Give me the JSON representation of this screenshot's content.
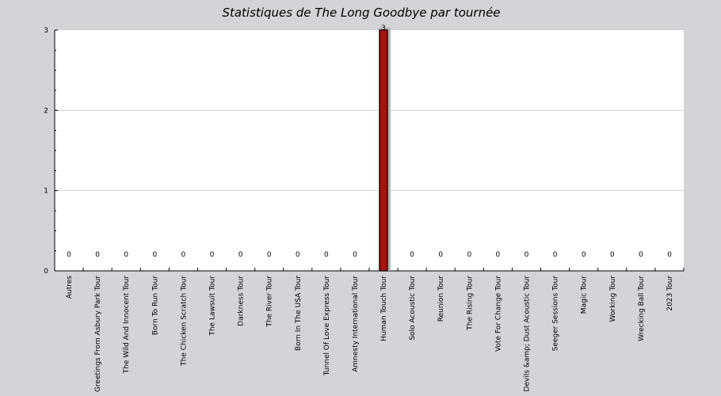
{
  "chart_data": {
    "type": "bar",
    "title": "Statistiques de The Long Goodbye par tournée",
    "xlabel": "",
    "ylabel": "",
    "ylim": [
      0,
      3
    ],
    "yticks": [
      0,
      1,
      2,
      3
    ],
    "grid": true,
    "bar_color": "#aa1111",
    "categories": [
      "Autres",
      "Greetings From Asbury Park Tour",
      "The Wild And Innocent Tour",
      "Born To Run Tour",
      "The Chicken Scratch Tour",
      "The Lawsuit Tour",
      "Darkness Tour",
      "The River Tour",
      "Born In The USA Tour",
      "Tunnel Of Love Express Tour",
      "Amnesty International Tour",
      "Human Touch Tour",
      "Solo Acoustic Tour",
      "Reunion Tour",
      "The Rising Tour",
      "Vote For Change Tour",
      "Devils &amp; Dust Acoustic Tour",
      "Seeger Sessions Tour",
      "Magic Tour",
      "Working Tour",
      "Wrecking Ball Tour",
      "2023 Tour"
    ],
    "values": [
      0,
      0,
      0,
      0,
      0,
      0,
      0,
      0,
      0,
      0,
      0,
      3,
      0,
      0,
      0,
      0,
      0,
      0,
      0,
      0,
      0,
      0
    ],
    "value_labels": [
      "0",
      "0",
      "0",
      "0",
      "0",
      "0",
      "0",
      "0",
      "0",
      "0",
      "0",
      "3",
      "0",
      "0",
      "0",
      "0",
      "0",
      "0",
      "0",
      "0",
      "0",
      "0"
    ]
  }
}
